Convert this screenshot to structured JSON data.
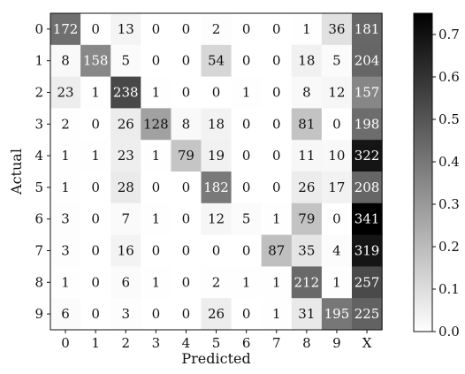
{
  "chart_data": {
    "type": "heatmap",
    "title": "",
    "xlabel": "Predicted",
    "ylabel": "Actual",
    "x_categories": [
      "0",
      "1",
      "2",
      "3",
      "4",
      "5",
      "6",
      "7",
      "8",
      "9",
      "X"
    ],
    "y_categories": [
      "0",
      "1",
      "2",
      "3",
      "4",
      "5",
      "6",
      "7",
      "8",
      "9"
    ],
    "matrix": [
      [
        172,
        0,
        13,
        0,
        0,
        2,
        0,
        0,
        1,
        36,
        181
      ],
      [
        8,
        158,
        5,
        0,
        0,
        54,
        0,
        0,
        18,
        5,
        204
      ],
      [
        23,
        1,
        238,
        1,
        0,
        0,
        1,
        0,
        8,
        12,
        157
      ],
      [
        2,
        0,
        26,
        128,
        8,
        18,
        0,
        0,
        81,
        0,
        198
      ],
      [
        1,
        1,
        23,
        1,
        79,
        19,
        0,
        0,
        11,
        10,
        322
      ],
      [
        1,
        0,
        28,
        0,
        0,
        182,
        0,
        0,
        26,
        17,
        208
      ],
      [
        3,
        0,
        7,
        1,
        0,
        12,
        5,
        1,
        79,
        0,
        341
      ],
      [
        3,
        0,
        16,
        0,
        0,
        0,
        0,
        87,
        35,
        4,
        319
      ],
      [
        1,
        0,
        6,
        1,
        0,
        2,
        1,
        1,
        212,
        1,
        257
      ],
      [
        6,
        0,
        3,
        0,
        0,
        26,
        0,
        1,
        31,
        195,
        225
      ]
    ],
    "colorbar": {
      "min": 0.0,
      "max": 0.75,
      "ticks": [
        "0.0",
        "0.1",
        "0.2",
        "0.3",
        "0.4",
        "0.5",
        "0.6",
        "0.7"
      ],
      "colormap": "Greys"
    },
    "grid": false
  }
}
